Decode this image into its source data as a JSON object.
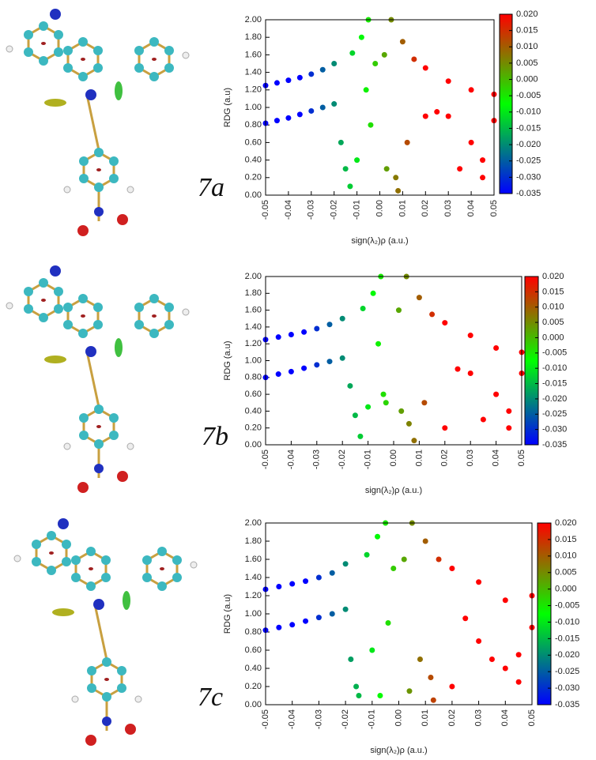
{
  "chart_data": [
    {
      "type": "scatter",
      "panel_label": "7a",
      "xlabel": "sign(λ₂)ρ (a.u.)",
      "ylabel": "RDG (a.u)",
      "xlim": [
        -0.05,
        0.05
      ],
      "ylim": [
        0,
        2
      ],
      "xticks": [
        -0.05,
        -0.04,
        -0.03,
        -0.02,
        -0.01,
        {
          "value": 0,
          "label": "0.00"
        },
        0.01,
        0.02,
        0.03,
        0.04,
        0.05
      ],
      "yticks": [
        {
          "value": 0,
          "label": "0.00"
        },
        {
          "value": 0.2,
          "label": "0.20"
        },
        {
          "value": 0.4,
          "label": "0.40"
        },
        {
          "value": 0.6,
          "label": "0.60"
        },
        {
          "value": 0.8,
          "label": "0.80"
        },
        {
          "value": 1,
          "label": "1.00"
        },
        {
          "value": 1.2,
          "label": "1.20"
        },
        {
          "value": 1.4,
          "label": "1.40"
        },
        {
          "value": 1.6,
          "label": "1.60"
        },
        {
          "value": 1.8,
          "label": "1.80"
        },
        {
          "value": 2,
          "label": "2.00"
        }
      ],
      "x": [
        -0.05,
        -0.05,
        -0.045,
        -0.045,
        -0.04,
        -0.04,
        -0.035,
        -0.035,
        -0.03,
        -0.03,
        -0.025,
        -0.025,
        -0.02,
        -0.02,
        -0.017,
        -0.015,
        -0.013,
        -0.012,
        -0.01,
        -0.008,
        -0.006,
        -0.005,
        -0.004,
        -0.002,
        0.002,
        0.003,
        0.005,
        0.007,
        0.008,
        0.01,
        0.012,
        0.015,
        0.02,
        0.02,
        0.025,
        0.03,
        0.035,
        0.04,
        0.045,
        0.05,
        0.05,
        0.03,
        0.04,
        0.045
      ],
      "values": [
        0.82,
        1.25,
        0.85,
        1.28,
        0.88,
        1.31,
        0.92,
        1.34,
        0.96,
        1.38,
        1.0,
        1.43,
        1.04,
        1.5,
        0.6,
        0.3,
        0.1,
        1.62,
        0.4,
        1.8,
        1.2,
        2.0,
        0.8,
        1.5,
        1.6,
        0.3,
        2.0,
        0.2,
        0.05,
        1.75,
        0.6,
        1.55,
        0.9,
        1.45,
        0.95,
        1.3,
        0.3,
        0.6,
        0.2,
        0.85,
        1.15,
        0.9,
        1.2,
        0.4
      ],
      "colorbar": {
        "lim": [
          -0.035,
          0.02
        ],
        "colors": [
          "#0000ff",
          "#00ff00",
          "#ff0000"
        ],
        "ticks": [
          {
            "value": 0.02,
            "label": "0.020"
          },
          {
            "value": 0.015,
            "label": "0.015"
          },
          {
            "value": 0.01,
            "label": "0.010"
          },
          {
            "value": 0.005,
            "label": "0.005"
          },
          {
            "value": 0,
            "label": "0.000"
          },
          {
            "value": -0.005,
            "label": "-0.005"
          },
          {
            "value": -0.01,
            "label": "-0.010"
          },
          {
            "value": -0.015,
            "label": "-0.015"
          },
          {
            "value": -0.02,
            "label": "-0.020"
          },
          {
            "value": -0.025,
            "label": "-0.025"
          },
          {
            "value": -0.03,
            "label": "-0.030"
          },
          {
            "value": -0.035,
            "label": "-0.035"
          }
        ]
      }
    },
    {
      "type": "scatter",
      "panel_label": "7b",
      "xlabel": "sign(λ₂)ρ (a.u.)",
      "ylabel": "RDG (a.u)",
      "xlim": [
        -0.05,
        0.05
      ],
      "ylim": [
        0,
        2
      ],
      "xticks": [
        -0.05,
        -0.04,
        -0.03,
        -0.02,
        -0.01,
        {
          "value": 0,
          "label": "0.00"
        },
        0.01,
        0.02,
        0.03,
        0.04,
        0.05
      ],
      "yticks": [
        {
          "value": 0,
          "label": "0.00"
        },
        {
          "value": 0.2,
          "label": "0.20"
        },
        {
          "value": 0.4,
          "label": "0.40"
        },
        {
          "value": 0.6,
          "label": "0.60"
        },
        {
          "value": 0.8,
          "label": "0.80"
        },
        {
          "value": 1,
          "label": "1.00"
        },
        {
          "value": 1.2,
          "label": "1.20"
        },
        {
          "value": 1.4,
          "label": "1.40"
        },
        {
          "value": 1.6,
          "label": "1.60"
        },
        {
          "value": 1.8,
          "label": "1.80"
        },
        {
          "value": 2,
          "label": "2.00"
        }
      ],
      "x": [
        -0.05,
        -0.05,
        -0.045,
        -0.045,
        -0.04,
        -0.04,
        -0.035,
        -0.035,
        -0.03,
        -0.03,
        -0.025,
        -0.025,
        -0.02,
        -0.02,
        -0.017,
        -0.015,
        -0.013,
        -0.012,
        -0.01,
        -0.008,
        -0.006,
        -0.005,
        -0.004,
        -0.003,
        0.002,
        0.003,
        0.005,
        0.006,
        0.008,
        0.01,
        0.012,
        0.015,
        0.02,
        0.02,
        0.025,
        0.03,
        0.035,
        0.04,
        0.045,
        0.05,
        0.05,
        0.03,
        0.04,
        0.045
      ],
      "values": [
        0.8,
        1.25,
        0.84,
        1.28,
        0.87,
        1.31,
        0.91,
        1.34,
        0.95,
        1.38,
        0.99,
        1.43,
        1.03,
        1.5,
        0.7,
        0.35,
        0.1,
        1.62,
        0.45,
        1.8,
        1.2,
        2.0,
        0.6,
        0.5,
        1.6,
        0.4,
        2.0,
        0.25,
        0.05,
        1.75,
        0.5,
        1.55,
        0.2,
        1.45,
        0.9,
        1.3,
        0.3,
        0.6,
        0.2,
        0.85,
        1.1,
        0.85,
        1.15,
        0.4
      ],
      "colorbar": {
        "lim": [
          -0.035,
          0.02
        ],
        "colors": [
          "#0000ff",
          "#00ff00",
          "#ff0000"
        ],
        "ticks": [
          {
            "value": 0.02,
            "label": "0.020"
          },
          {
            "value": 0.015,
            "label": "0.015"
          },
          {
            "value": 0.01,
            "label": "0.010"
          },
          {
            "value": 0.005,
            "label": "0.005"
          },
          {
            "value": 0,
            "label": "0.000"
          },
          {
            "value": -0.005,
            "label": "-0.005"
          },
          {
            "value": -0.01,
            "label": "-0.010"
          },
          {
            "value": -0.015,
            "label": "-0.015"
          },
          {
            "value": -0.02,
            "label": "-0.020"
          },
          {
            "value": -0.025,
            "label": "-0.025"
          },
          {
            "value": -0.03,
            "label": "-0.030"
          },
          {
            "value": -0.035,
            "label": "-0.035"
          }
        ]
      }
    },
    {
      "type": "scatter",
      "panel_label": "7c",
      "xlabel": "sign(λ₂)ρ (a.u.)",
      "ylabel": "RDG (a.u)",
      "xlim": [
        -0.05,
        0.05
      ],
      "ylim": [
        0,
        2
      ],
      "xticks": [
        -0.05,
        -0.04,
        -0.03,
        -0.02,
        -0.01,
        {
          "value": 0,
          "label": "0.00"
        },
        0.01,
        0.02,
        0.03,
        0.04,
        0.05
      ],
      "yticks": [
        {
          "value": 0,
          "label": "0.00"
        },
        {
          "value": 0.2,
          "label": "0.20"
        },
        {
          "value": 0.4,
          "label": "0.40"
        },
        {
          "value": 0.6,
          "label": "0.60"
        },
        {
          "value": 0.8,
          "label": "0.80"
        },
        {
          "value": 1,
          "label": "1.00"
        },
        {
          "value": 1.2,
          "label": "1.20"
        },
        {
          "value": 1.4,
          "label": "1.40"
        },
        {
          "value": 1.6,
          "label": "1.60"
        },
        {
          "value": 1.8,
          "label": "1.80"
        },
        {
          "value": 2,
          "label": "2.00"
        }
      ],
      "x": [
        -0.05,
        -0.05,
        -0.045,
        -0.045,
        -0.04,
        -0.04,
        -0.035,
        -0.035,
        -0.03,
        -0.03,
        -0.025,
        -0.025,
        -0.02,
        -0.02,
        -0.018,
        -0.016,
        -0.015,
        -0.012,
        -0.01,
        -0.008,
        -0.007,
        -0.005,
        -0.004,
        -0.002,
        0.002,
        0.004,
        0.005,
        0.008,
        0.013,
        0.01,
        0.012,
        0.015,
        0.02,
        0.02,
        0.025,
        0.03,
        0.035,
        0.04,
        0.045,
        0.05,
        0.05,
        0.03,
        0.04,
        0.045
      ],
      "values": [
        0.82,
        1.27,
        0.85,
        1.3,
        0.88,
        1.33,
        0.92,
        1.36,
        0.96,
        1.4,
        1.0,
        1.45,
        1.05,
        1.55,
        0.5,
        0.2,
        0.1,
        1.65,
        0.6,
        1.85,
        0.1,
        2.0,
        0.9,
        1.5,
        1.6,
        0.15,
        2.0,
        0.5,
        0.05,
        1.8,
        0.3,
        1.6,
        0.2,
        1.5,
        0.95,
        1.35,
        0.5,
        0.4,
        0.25,
        0.85,
        1.2,
        0.7,
        1.15,
        0.55
      ],
      "colorbar": {
        "lim": [
          -0.035,
          0.02
        ],
        "colors": [
          "#0000ff",
          "#00ff00",
          "#ff0000"
        ],
        "ticks": [
          {
            "value": 0.02,
            "label": "0.020"
          },
          {
            "value": 0.015,
            "label": "0.015"
          },
          {
            "value": 0.01,
            "label": "0.010"
          },
          {
            "value": 0.005,
            "label": "0.005"
          },
          {
            "value": 0,
            "label": "0.000"
          },
          {
            "value": -0.005,
            "label": "-0.005"
          },
          {
            "value": -0.01,
            "label": "-0.010"
          },
          {
            "value": -0.015,
            "label": "-0.015"
          },
          {
            "value": -0.02,
            "label": "-0.020"
          },
          {
            "value": -0.025,
            "label": "-0.025"
          },
          {
            "value": -0.03,
            "label": "-0.030"
          },
          {
            "value": -0.035,
            "label": "-0.035"
          }
        ]
      }
    }
  ]
}
